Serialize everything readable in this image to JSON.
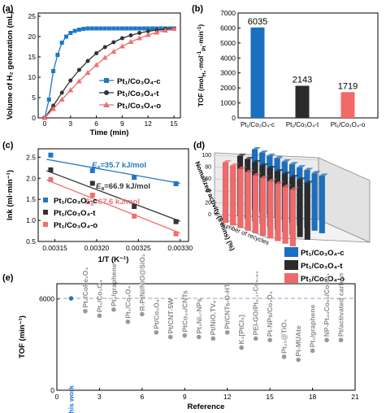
{
  "colors": {
    "c": "#1f77c4",
    "t": "#333333",
    "o": "#f07070",
    "blue": "#1a6fbf",
    "dark": "#2b2b2b",
    "red": "#f06a6a"
  },
  "chart_data": [
    {
      "panel": "(a)",
      "type": "line",
      "xlabel": "Time (min)",
      "ylabel": "Volume of H₂ generation (mL)",
      "xlim": [
        0,
        15
      ],
      "ylim": [
        0,
        25
      ],
      "xticks": [
        "0",
        "3",
        "6",
        "9",
        "12",
        "15"
      ],
      "yticks": [
        "0",
        "5",
        "10",
        "15",
        "20",
        "25"
      ],
      "legend_position": "bottom-right",
      "series": [
        {
          "name": "Pt₁/Co₃O₄-c",
          "key": "c",
          "marker": "square",
          "x": [
            0,
            0.5,
            1,
            1.5,
            2,
            2.5,
            3,
            3.5,
            4,
            4.5,
            5,
            5.5,
            6,
            6.5,
            7,
            7.5,
            8,
            8.5,
            9,
            9.5,
            10,
            10.5,
            11,
            11.5,
            12,
            12.5,
            13,
            13.5,
            14,
            14.5,
            15
          ],
          "y": [
            0,
            4.5,
            11.5,
            15.5,
            18.5,
            20,
            20.9,
            21.4,
            21.7,
            21.9,
            22,
            22,
            22,
            22,
            22,
            22,
            22,
            22,
            22,
            22,
            22,
            22,
            22,
            22,
            22,
            22,
            22,
            22,
            22,
            22,
            22
          ]
        },
        {
          "name": "Pt₁/Co₃O₄-t",
          "key": "t",
          "marker": "circle",
          "x": [
            0,
            1,
            2,
            3,
            4,
            5,
            6,
            7,
            8,
            9,
            10,
            11,
            12,
            13,
            14,
            15
          ],
          "y": [
            0,
            3.0,
            6.2,
            9.2,
            11.8,
            14,
            15.9,
            17.4,
            18.6,
            19.6,
            20.3,
            20.9,
            21.3,
            21.6,
            21.8,
            22
          ]
        },
        {
          "name": "Pt₁/Co₃O₄-o",
          "key": "o",
          "marker": "triangle",
          "x": [
            0,
            1,
            2,
            3,
            4,
            5,
            6,
            7,
            8,
            9,
            10,
            11,
            12,
            13,
            14,
            15
          ],
          "y": [
            0,
            2.2,
            4.5,
            6.8,
            9.0,
            11.1,
            13.0,
            14.8,
            16.3,
            17.6,
            18.7,
            19.6,
            20.4,
            21.0,
            21.5,
            21.9
          ]
        }
      ]
    },
    {
      "panel": "(b)",
      "type": "bar",
      "ylabel": "TOF (mol",
      "ylabel_sub1": "H₂",
      "ylabel_mid": "·mol",
      "ylabel_sub2": "Pt",
      "ylabel_sup2": "-1",
      "ylabel_tail": "·min",
      "ylabel_sup3": "-1",
      "ylabel_close": ")",
      "ylim": [
        0,
        7000
      ],
      "yticks": [
        "0",
        "1000",
        "2000",
        "3000",
        "4000",
        "5000",
        "6000",
        "7000"
      ],
      "categories": [
        "Pt₁/Co₃O₄-c",
        "Pt₁/Co₃O₄-t",
        "Pt₁/Co₃O₄-o"
      ],
      "values": [
        6035,
        2143,
        1719
      ],
      "value_labels": [
        "6035",
        "2143",
        "1719"
      ]
    },
    {
      "panel": "(c)",
      "type": "scatter",
      "xlabel": "1/T (K⁻¹)",
      "ylabel": "lnk (ml·min⁻¹)",
      "xlim": [
        0.00313,
        0.00331
      ],
      "ylim": [
        0.5,
        2.7
      ],
      "xticks": [
        "0.00315",
        "0.00320",
        "0.00325",
        "0.00330"
      ],
      "yticks": [
        "0.5",
        "1.0",
        "1.5",
        "2.0",
        "2.5"
      ],
      "legend_position": "bottom-left",
      "series": [
        {
          "name": "Pt₁/Co₃O₄-c",
          "key": "c",
          "x": [
            0.003145,
            0.003195,
            0.003245,
            0.003295
          ],
          "y": [
            2.55,
            2.18,
            2.02,
            1.87
          ],
          "fit": [
            [
              0.00314,
              2.45
            ],
            [
              0.0033,
              1.88
            ]
          ],
          "ea": "=35.7 kJ/mol"
        },
        {
          "name": "Pt₁/Co₃O₄-t",
          "key": "t",
          "x": [
            0.003145,
            0.003195,
            0.003245,
            0.003295
          ],
          "y": [
            2.2,
            1.88,
            1.33,
            0.97
          ],
          "fit": [
            [
              0.00314,
              2.18
            ],
            [
              0.0033,
              0.98
            ]
          ],
          "ea": "=66.9 kJ/mol"
        },
        {
          "name": "Pt₁/Co₃O₄-o",
          "key": "o",
          "x": [
            0.003145,
            0.003195,
            0.003245,
            0.003295
          ],
          "y": [
            1.97,
            1.6,
            1.1,
            0.68
          ],
          "fit": [
            [
              0.00314,
              1.96
            ],
            [
              0.0033,
              0.7
            ]
          ],
          "ea": "=67.6 kJ/mol"
        }
      ],
      "ea_symbol": "E",
      "ea_sub": "a"
    },
    {
      "panel": "(d)",
      "type": "bar3d",
      "zlabel": "Nomalized activity (8 mins) (%)",
      "xlabel": "Number of recycles",
      "zticks": [
        "0",
        "20",
        "40",
        "60",
        "80",
        "100"
      ],
      "series": [
        {
          "name": "Pt₁/Co₃O₄-c",
          "key": "blue",
          "values": [
            100,
            99,
            98,
            98,
            97,
            97,
            96,
            96,
            95,
            95
          ]
        },
        {
          "name": "Pt₁/Co₃O₄-t",
          "key": "dark",
          "values": [
            100,
            99,
            98,
            97,
            97,
            96,
            96,
            95,
            95,
            94
          ]
        },
        {
          "name": "Pt₁/Co₃O₄-o",
          "key": "red",
          "values": [
            100,
            99,
            98,
            97,
            96,
            96,
            95,
            95,
            94,
            94
          ]
        }
      ]
    },
    {
      "panel": "(e)",
      "type": "scatter",
      "xlabel": "Reference",
      "ylabel": "TOF (min⁻¹)",
      "xlim": [
        0,
        21
      ],
      "ylim": [
        0,
        7000
      ],
      "xticks": [
        "0",
        "3",
        "6",
        "9",
        "12",
        "15",
        "18",
        "21"
      ],
      "yticks": [
        "0",
        "6000"
      ],
      "reference_line_y": 6035,
      "points": [
        {
          "label": "This work",
          "x": 1,
          "y": 6035
        },
        {
          "label": "Pt₁/CoFe₂O₄",
          "x": 2,
          "y": 5200
        },
        {
          "label": "Pt₁/Co₃O₄",
          "x": 3,
          "y": 4900
        },
        {
          "label": "Pt₁/graphene",
          "x": 4,
          "y": 5300
        },
        {
          "label": "Pt₁/Co₃O₄",
          "x": 5,
          "y": 4500
        },
        {
          "label": "R-PtNi/NiO@SiO₂",
          "x": 6,
          "y": 5000
        },
        {
          "label": "Pt/Co₃O₄",
          "x": 7,
          "y": 3800
        },
        {
          "label": "Pt/CNT-5W",
          "x": 8,
          "y": 3500
        },
        {
          "label": "PtCo₂₀/CNTs",
          "x": 9,
          "y": 3600
        },
        {
          "label": "Pt₂Ni₁-NPs",
          "x": 10,
          "y": 3500
        },
        {
          "label": "Pt/NiO,TVₒ",
          "x": 11,
          "y": 3400
        },
        {
          "label": "Pt/CNTs-O-HT",
          "x": 12,
          "y": 3800
        },
        {
          "label": "K₂[PtCl₆]",
          "x": 13,
          "y": 2800
        },
        {
          "label": "PEI-GO/Pt₀.₁₇Co₀.₈₃",
          "x": 14,
          "y": 3400
        },
        {
          "label": "Pt-NPs/Co₃O₄",
          "x": 15,
          "y": 3300
        },
        {
          "label": "Pt₂₅@TiO₂",
          "x": 16,
          "y": 2200
        },
        {
          "label": "Pt-MUAte",
          "x": 17,
          "y": 2000
        },
        {
          "label": "Pt₁/graphene",
          "x": 18,
          "y": 2600
        },
        {
          "label": "NP-Pt₄₀Co₆₀/Co₃O₄",
          "x": 19,
          "y": 3300
        },
        {
          "label": "Pt/activated carbon",
          "x": 20,
          "y": 3300
        }
      ]
    }
  ]
}
